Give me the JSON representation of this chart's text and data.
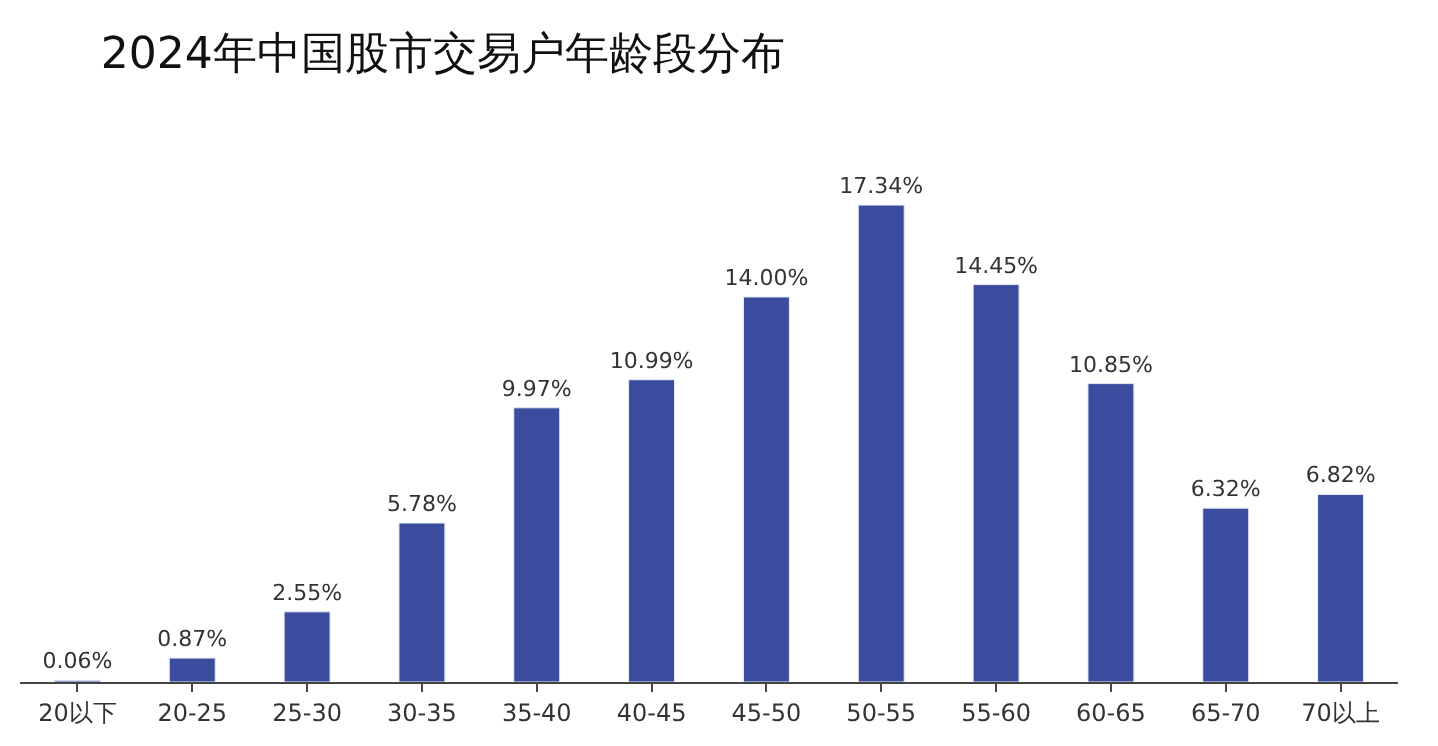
{
  "chart_data": {
    "type": "bar",
    "title": "2024年中国股市交易户年龄段分布",
    "categories": [
      "20以下",
      "20-25",
      "25-30",
      "30-35",
      "35-40",
      "40-45",
      "45-50",
      "50-55",
      "55-60",
      "60-65",
      "65-70",
      "70以上"
    ],
    "values": [
      0.06,
      0.87,
      2.55,
      5.78,
      9.97,
      10.99,
      14.0,
      17.34,
      14.45,
      10.85,
      6.32,
      6.82
    ],
    "value_labels": [
      "0.06%",
      "0.87%",
      "2.55%",
      "5.78%",
      "9.97%",
      "10.99%",
      "14.00%",
      "17.34%",
      "14.45%",
      "10.85%",
      "6.32%",
      "6.82%"
    ],
    "color": "#3b4c9e",
    "tick_labels": "x"
  }
}
